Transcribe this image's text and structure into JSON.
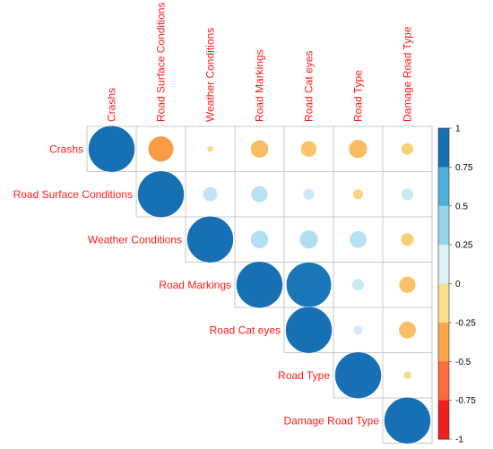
{
  "chart_data": {
    "type": "heatmap",
    "variables": [
      "Crashs",
      "Road Surface Conditions",
      "Weather Conditions",
      "Road Markings",
      "Road Cat eyes",
      "Road Type",
      "Damage Road Type"
    ],
    "matrix": [
      [
        1.0,
        -0.3,
        -0.02,
        -0.15,
        -0.12,
        -0.16,
        -0.07
      ],
      [
        null,
        1.0,
        0.1,
        0.13,
        0.06,
        -0.05,
        0.07
      ],
      [
        null,
        null,
        1.0,
        0.15,
        0.16,
        0.14,
        -0.08
      ],
      [
        null,
        null,
        null,
        1.0,
        0.94,
        0.07,
        -0.13
      ],
      [
        null,
        null,
        null,
        null,
        1.0,
        0.04,
        -0.14
      ],
      [
        null,
        null,
        null,
        null,
        null,
        1.0,
        -0.03
      ],
      [
        null,
        null,
        null,
        null,
        null,
        null,
        1.0
      ]
    ],
    "colorbar": {
      "ticks": [
        "1",
        "0.75",
        "0.5",
        "0.25",
        "0",
        "-0.25",
        "-0.5",
        "-0.75",
        "-1"
      ],
      "range": [
        -1,
        1
      ]
    },
    "layout": "upper-triangle",
    "legend_position": "right"
  }
}
